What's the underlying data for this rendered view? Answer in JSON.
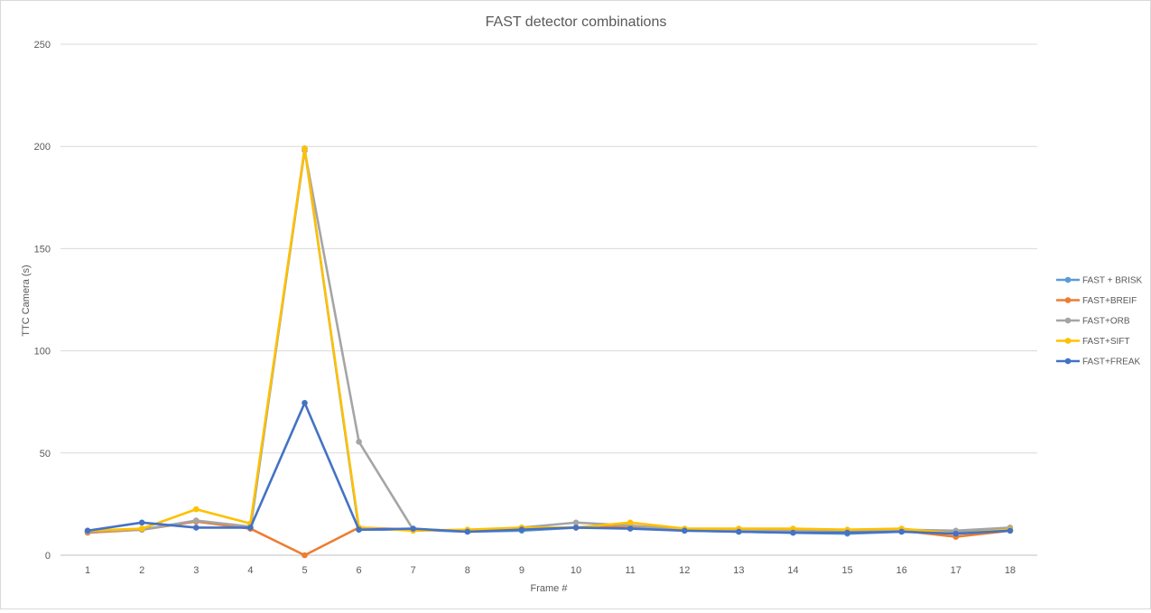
{
  "chart_data": {
    "type": "line",
    "title": "FAST detector combinations",
    "xlabel": "Frame #",
    "ylabel": "TTC Camera (s)",
    "x": [
      "1",
      "2",
      "3",
      "4",
      "5",
      "6",
      "7",
      "8",
      "9",
      "10",
      "11",
      "12",
      "13",
      "14",
      "15",
      "16",
      "17",
      "18"
    ],
    "ylim": [
      0,
      250
    ],
    "yticks": [
      "0",
      "50",
      "100",
      "150",
      "200",
      "250"
    ],
    "grid": true,
    "legend_position": "right",
    "series": [
      {
        "name": "FAST + BRISK",
        "color": "#5b9bd5",
        "values": [
          12.0,
          12.5,
          16.5,
          13.0,
          199.0,
          12.5,
          12.5,
          11.5,
          12.0,
          13.5,
          14.0,
          12.0,
          11.5,
          11.0,
          10.5,
          11.5,
          11.0,
          12.5
        ]
      },
      {
        "name": "FAST+BREIF",
        "color": "#ed7d31",
        "values": [
          11.0,
          12.5,
          16.5,
          13.0,
          0.0,
          13.5,
          12.5,
          12.0,
          13.0,
          13.5,
          14.0,
          12.5,
          12.0,
          11.5,
          11.5,
          12.0,
          9.0,
          12.0
        ]
      },
      {
        "name": "FAST+ORB",
        "color": "#a5a5a5",
        "values": [
          11.5,
          12.5,
          17.0,
          14.0,
          198.0,
          55.5,
          12.5,
          12.0,
          13.5,
          16.0,
          14.5,
          12.5,
          12.5,
          12.0,
          11.5,
          12.5,
          12.0,
          13.5
        ]
      },
      {
        "name": "FAST+SIFT",
        "color": "#ffc000",
        "values": [
          12.0,
          13.0,
          22.5,
          15.5,
          199.0,
          13.5,
          12.0,
          12.5,
          13.5,
          13.5,
          16.0,
          13.0,
          13.0,
          13.0,
          12.5,
          13.0,
          10.5,
          12.5
        ]
      },
      {
        "name": "FAST+FREAK",
        "color": "#4472c4",
        "values": [
          12.0,
          16.0,
          13.5,
          13.5,
          74.5,
          12.5,
          13.0,
          11.5,
          12.5,
          13.5,
          13.0,
          12.0,
          11.5,
          11.0,
          11.0,
          11.5,
          10.5,
          12.0
        ]
      }
    ]
  }
}
